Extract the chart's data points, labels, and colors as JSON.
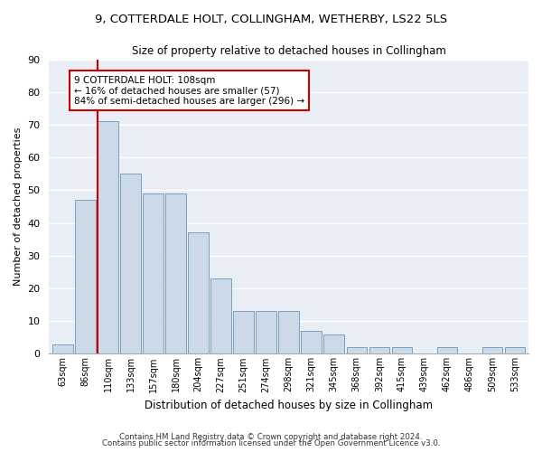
{
  "title": "9, COTTERDALE HOLT, COLLINGHAM, WETHERBY, LS22 5LS",
  "subtitle": "Size of property relative to detached houses in Collingham",
  "xlabel": "Distribution of detached houses by size in Collingham",
  "ylabel": "Number of detached properties",
  "bar_color": "#ccd9e8",
  "bar_edge_color": "#7aa0be",
  "bg_color": "#e8eef4",
  "annotation_box_color": "#cc0000",
  "vline_color": "#cc0000",
  "annotation_text": "9 COTTERDALE HOLT: 108sqm\n← 16% of detached houses are smaller (57)\n84% of semi-detached houses are larger (296) →",
  "categories": [
    "63sqm",
    "86sqm",
    "110sqm",
    "133sqm",
    "157sqm",
    "180sqm",
    "204sqm",
    "227sqm",
    "251sqm",
    "274sqm",
    "298sqm",
    "321sqm",
    "345sqm",
    "368sqm",
    "392sqm",
    "415sqm",
    "439sqm",
    "462sqm",
    "486sqm",
    "509sqm",
    "533sqm"
  ],
  "values": [
    3,
    47,
    71,
    55,
    49,
    49,
    37,
    23,
    13,
    13,
    13,
    7,
    6,
    2,
    2,
    2,
    0,
    2,
    0,
    2,
    2
  ],
  "ylim": [
    0,
    90
  ],
  "yticks": [
    0,
    10,
    20,
    30,
    40,
    50,
    60,
    70,
    80,
    90
  ],
  "footer1": "Contains HM Land Registry data © Crown copyright and database right 2024.",
  "footer2": "Contains public sector information licensed under the Open Government Licence v3.0."
}
